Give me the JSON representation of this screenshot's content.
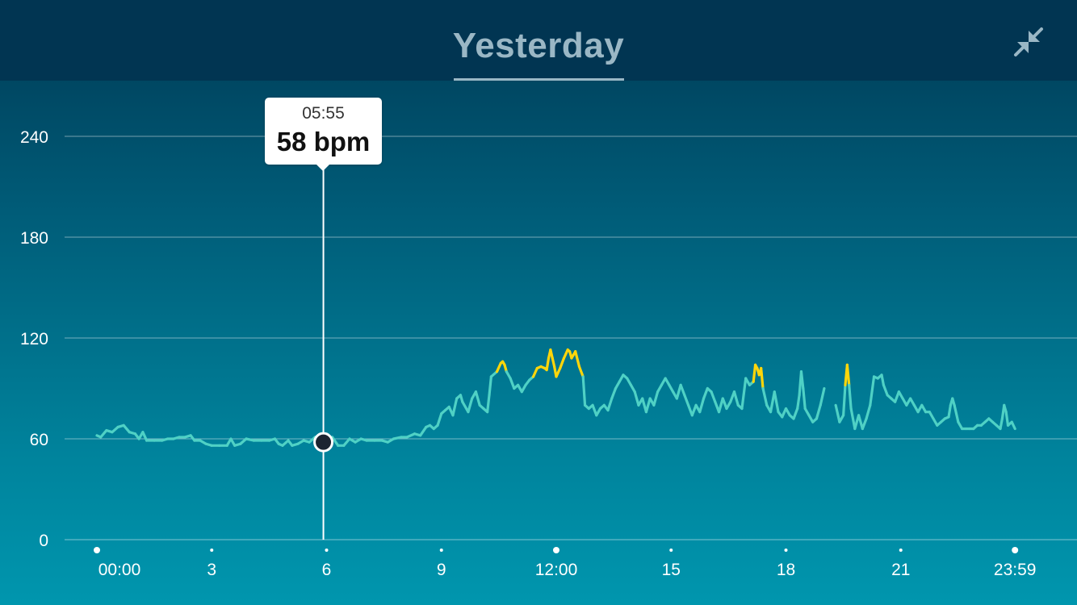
{
  "header": {
    "title": "Yesterday",
    "collapse_icon": "collapse-arrows-icon"
  },
  "tooltip": {
    "time": "05:55",
    "value_label": "58 bpm"
  },
  "colors": {
    "line_normal": "#4fd1c5",
    "line_zone": "#ffd60a",
    "grid": "#ffffff",
    "marker": "#1c2431"
  },
  "chart_data": {
    "type": "line",
    "title": "Yesterday",
    "xlabel": "",
    "ylabel": "",
    "ylim": [
      0,
      264
    ],
    "xlim": [
      0,
      24
    ],
    "y_ticks": [
      0,
      60,
      120,
      180,
      240
    ],
    "x_ticks": [
      {
        "value": 0,
        "label": "00:00",
        "major": true
      },
      {
        "value": 3,
        "label": "3",
        "major": false
      },
      {
        "value": 6,
        "label": "6",
        "major": false
      },
      {
        "value": 9,
        "label": "9",
        "major": false
      },
      {
        "value": 12,
        "label": "12:00",
        "major": true
      },
      {
        "value": 15,
        "label": "15",
        "major": false
      },
      {
        "value": 18,
        "label": "18",
        "major": false
      },
      {
        "value": 21,
        "label": "21",
        "major": false
      },
      {
        "value": 23.983,
        "label": "23:59",
        "major": true
      }
    ],
    "zone_threshold": 100,
    "grid": true,
    "selected_point": {
      "x": 5.917,
      "y": 58
    },
    "series": [
      {
        "values": [
          [
            0.0,
            62
          ],
          [
            0.1,
            61
          ],
          [
            0.25,
            65
          ],
          [
            0.4,
            64
          ],
          [
            0.55,
            67
          ],
          [
            0.7,
            68
          ],
          [
            0.85,
            64
          ],
          [
            1.0,
            63
          ],
          [
            1.1,
            60
          ],
          [
            1.2,
            64
          ],
          [
            1.3,
            59
          ],
          [
            1.5,
            59
          ],
          [
            1.7,
            59
          ],
          [
            1.85,
            60
          ],
          [
            2.0,
            60
          ],
          [
            2.15,
            61
          ],
          [
            2.3,
            61
          ],
          [
            2.45,
            62
          ],
          [
            2.55,
            59
          ],
          [
            2.7,
            59
          ],
          [
            2.85,
            57
          ],
          [
            3.0,
            56
          ],
          [
            3.2,
            56
          ],
          [
            3.4,
            56
          ],
          [
            3.5,
            60
          ],
          [
            3.6,
            56
          ],
          [
            3.75,
            57
          ],
          [
            3.9,
            60
          ],
          [
            4.1,
            59
          ],
          [
            4.3,
            59
          ],
          [
            4.5,
            59
          ],
          [
            4.65,
            60
          ],
          [
            4.75,
            57
          ],
          [
            4.85,
            56
          ],
          [
            5.0,
            59
          ],
          [
            5.1,
            56
          ],
          [
            5.25,
            57
          ],
          [
            5.4,
            59
          ],
          [
            5.55,
            58
          ],
          [
            5.7,
            61
          ],
          [
            5.8,
            58
          ],
          [
            5.92,
            58
          ],
          [
            6.05,
            59
          ],
          [
            6.15,
            61
          ],
          [
            6.3,
            56
          ],
          [
            6.45,
            56
          ],
          [
            6.6,
            60
          ],
          [
            6.75,
            58
          ],
          [
            6.9,
            60
          ],
          [
            7.05,
            59
          ],
          [
            7.25,
            59
          ],
          [
            7.45,
            59
          ],
          [
            7.6,
            58
          ],
          [
            7.75,
            60
          ],
          [
            7.95,
            61
          ],
          [
            8.1,
            61
          ],
          [
            8.3,
            63
          ],
          [
            8.45,
            62
          ],
          [
            8.6,
            67
          ],
          [
            8.7,
            68
          ],
          [
            8.8,
            66
          ],
          [
            8.9,
            68
          ],
          [
            9.0,
            75
          ],
          [
            9.1,
            77
          ],
          [
            9.2,
            79
          ],
          [
            9.3,
            74
          ],
          [
            9.4,
            84
          ],
          [
            9.5,
            86
          ],
          [
            9.55,
            82
          ],
          [
            9.7,
            76
          ],
          [
            9.8,
            84
          ],
          [
            9.9,
            88
          ],
          [
            10.0,
            80
          ],
          [
            10.1,
            78
          ],
          [
            10.2,
            76
          ],
          [
            10.25,
            86
          ],
          [
            10.3,
            97
          ],
          [
            10.45,
            100
          ],
          [
            10.55,
            105
          ],
          [
            10.6,
            106
          ],
          [
            10.65,
            104
          ],
          [
            10.7,
            100
          ],
          [
            10.8,
            96
          ],
          [
            10.9,
            90
          ],
          [
            11.0,
            92
          ],
          [
            11.1,
            88
          ],
          [
            11.2,
            92
          ],
          [
            11.3,
            95
          ],
          [
            11.4,
            97
          ],
          [
            11.5,
            102
          ],
          [
            11.6,
            103
          ],
          [
            11.7,
            102
          ],
          [
            11.75,
            101
          ],
          [
            11.8,
            108
          ],
          [
            11.85,
            113
          ],
          [
            11.9,
            108
          ],
          [
            11.95,
            103
          ],
          [
            12.0,
            97
          ],
          [
            12.1,
            102
          ],
          [
            12.2,
            108
          ],
          [
            12.3,
            113
          ],
          [
            12.35,
            112
          ],
          [
            12.4,
            108
          ],
          [
            12.5,
            112
          ],
          [
            12.6,
            103
          ],
          [
            12.7,
            97
          ],
          [
            12.75,
            80
          ],
          [
            12.85,
            78
          ],
          [
            12.95,
            80
          ],
          [
            13.05,
            74
          ],
          [
            13.15,
            78
          ],
          [
            13.25,
            80
          ],
          [
            13.35,
            77
          ],
          [
            13.45,
            84
          ],
          [
            13.55,
            90
          ],
          [
            13.65,
            94
          ],
          [
            13.75,
            98
          ],
          [
            13.85,
            96
          ],
          [
            13.95,
            92
          ],
          [
            14.05,
            88
          ],
          [
            14.15,
            80
          ],
          [
            14.25,
            84
          ],
          [
            14.35,
            76
          ],
          [
            14.45,
            84
          ],
          [
            14.55,
            80
          ],
          [
            14.65,
            88
          ],
          [
            14.75,
            92
          ],
          [
            14.85,
            96
          ],
          [
            14.95,
            92
          ],
          [
            15.05,
            88
          ],
          [
            15.15,
            84
          ],
          [
            15.25,
            92
          ],
          [
            15.35,
            86
          ],
          [
            15.45,
            80
          ],
          [
            15.55,
            74
          ],
          [
            15.65,
            80
          ],
          [
            15.75,
            76
          ],
          [
            15.85,
            84
          ],
          [
            15.95,
            90
          ],
          [
            16.05,
            88
          ],
          [
            16.15,
            82
          ],
          [
            16.25,
            76
          ],
          [
            16.35,
            84
          ],
          [
            16.45,
            78
          ],
          [
            16.55,
            82
          ],
          [
            16.65,
            88
          ],
          [
            16.75,
            80
          ],
          [
            16.85,
            78
          ],
          [
            16.95,
            96
          ],
          [
            17.05,
            92
          ],
          [
            17.15,
            94
          ],
          [
            17.2,
            104
          ],
          [
            17.25,
            102
          ],
          [
            17.3,
            98
          ],
          [
            17.35,
            102
          ],
          [
            17.4,
            90
          ],
          [
            17.5,
            80
          ],
          [
            17.6,
            76
          ],
          [
            17.7,
            88
          ],
          [
            17.8,
            76
          ],
          [
            17.9,
            73
          ],
          [
            18.0,
            78
          ],
          [
            18.1,
            74
          ],
          [
            18.2,
            72
          ],
          [
            18.3,
            78
          ],
          [
            18.35,
            86
          ],
          [
            18.4,
            100
          ],
          [
            18.45,
            90
          ],
          [
            18.5,
            78
          ],
          [
            18.6,
            74
          ],
          [
            18.7,
            70
          ],
          [
            18.8,
            72
          ],
          [
            18.9,
            80
          ],
          [
            19.0,
            90
          ]
        ]
      },
      {
        "values": [
          [
            19.3,
            80
          ],
          [
            19.4,
            70
          ],
          [
            19.5,
            74
          ],
          [
            19.55,
            92
          ],
          [
            19.6,
            104
          ],
          [
            19.65,
            92
          ],
          [
            19.7,
            78
          ],
          [
            19.8,
            66
          ],
          [
            19.9,
            74
          ],
          [
            20.0,
            66
          ],
          [
            20.1,
            72
          ],
          [
            20.2,
            80
          ],
          [
            20.3,
            97
          ],
          [
            20.4,
            96
          ],
          [
            20.5,
            98
          ],
          [
            20.55,
            92
          ],
          [
            20.65,
            86
          ],
          [
            20.75,
            84
          ],
          [
            20.85,
            82
          ],
          [
            20.95,
            88
          ],
          [
            21.05,
            84
          ],
          [
            21.15,
            80
          ],
          [
            21.25,
            84
          ],
          [
            21.35,
            80
          ],
          [
            21.45,
            76
          ],
          [
            21.55,
            80
          ],
          [
            21.65,
            76
          ],
          [
            21.75,
            76
          ],
          [
            21.85,
            72
          ],
          [
            21.95,
            68
          ],
          [
            22.05,
            70
          ],
          [
            22.15,
            72
          ],
          [
            22.25,
            73
          ],
          [
            22.3,
            80
          ],
          [
            22.35,
            84
          ],
          [
            22.4,
            80
          ],
          [
            22.5,
            70
          ],
          [
            22.6,
            66
          ],
          [
            22.7,
            66
          ],
          [
            22.8,
            66
          ],
          [
            22.9,
            66
          ],
          [
            23.0,
            68
          ],
          [
            23.1,
            68
          ],
          [
            23.2,
            70
          ],
          [
            23.3,
            72
          ],
          [
            23.4,
            70
          ],
          [
            23.5,
            68
          ],
          [
            23.6,
            66
          ],
          [
            23.65,
            72
          ],
          [
            23.7,
            80
          ],
          [
            23.75,
            76
          ],
          [
            23.8,
            68
          ],
          [
            23.9,
            70
          ],
          [
            23.983,
            66
          ]
        ]
      }
    ]
  }
}
